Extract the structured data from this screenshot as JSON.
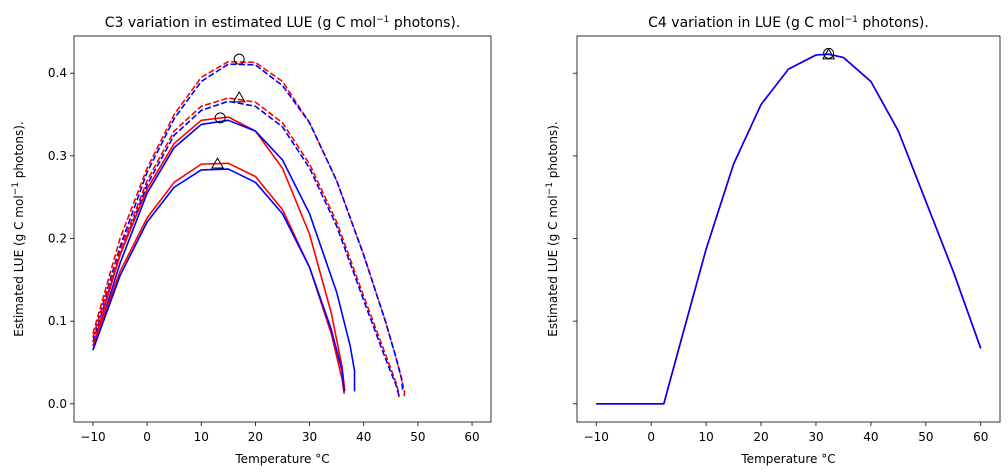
{
  "chart_data": [
    {
      "type": "line",
      "title": "C3 variation in estimated LUE (g C mol",
      "title_sup": "−1",
      "title_suffix": " photons).",
      "xlabel": "Temperature °C",
      "ylabel": "Estimated LUE (g C mol",
      "ylabel_sup": "−1",
      "ylabel_suffix": " photons).",
      "xlim": [
        -13.5,
        63.5
      ],
      "ylim": [
        -0.022,
        0.445
      ],
      "xticks": [
        -10,
        0,
        10,
        20,
        30,
        40,
        50,
        60
      ],
      "yticks": [
        0.0,
        0.1,
        0.2,
        0.3,
        0.4
      ],
      "ytick_labels": [
        "0.0",
        "0.1",
        "0.2",
        "0.3",
        "0.4"
      ],
      "grid": false,
      "colors": {
        "red": "#ff0000",
        "blue": "#0000ff"
      },
      "series": [
        {
          "color": "#ff0000",
          "dash": true,
          "x": [
            -10,
            -5,
            0,
            5,
            10,
            15,
            20,
            25,
            30,
            35,
            40,
            44,
            46,
            47,
            47.5,
            47.5
          ],
          "y": [
            0.085,
            0.2,
            0.285,
            0.35,
            0.395,
            0.414,
            0.413,
            0.39,
            0.34,
            0.27,
            0.18,
            0.1,
            0.055,
            0.03,
            0.015,
            0.008
          ]
        },
        {
          "color": "#0000ff",
          "dash": true,
          "x": [
            -10,
            -5,
            0,
            5,
            10,
            15,
            20,
            25,
            30,
            35,
            40,
            44,
            46,
            47,
            47.2,
            47.2
          ],
          "y": [
            0.08,
            0.19,
            0.28,
            0.345,
            0.39,
            0.411,
            0.41,
            0.385,
            0.34,
            0.27,
            0.18,
            0.1,
            0.055,
            0.03,
            0.015,
            0.015
          ]
        },
        {
          "color": "#ff0000",
          "dash": true,
          "x": [
            -10,
            -5,
            0,
            5,
            10,
            15,
            20,
            25,
            30,
            35,
            40,
            44,
            46,
            46.5,
            46.5
          ],
          "y": [
            0.08,
            0.185,
            0.27,
            0.33,
            0.36,
            0.37,
            0.365,
            0.34,
            0.29,
            0.22,
            0.13,
            0.06,
            0.025,
            0.012,
            0.008
          ]
        },
        {
          "color": "#0000ff",
          "dash": true,
          "x": [
            -10,
            -5,
            0,
            5,
            10,
            15,
            20,
            25,
            30,
            35,
            40,
            44,
            46,
            46.5,
            46.5
          ],
          "y": [
            0.075,
            0.18,
            0.265,
            0.325,
            0.355,
            0.366,
            0.36,
            0.335,
            0.285,
            0.215,
            0.125,
            0.055,
            0.022,
            0.01,
            0.01
          ]
        },
        {
          "color": "#ff0000",
          "dash": false,
          "x": [
            -10,
            -5,
            0,
            5,
            10,
            15,
            20,
            25,
            30,
            34,
            36,
            36.5
          ],
          "y": [
            0.07,
            0.18,
            0.26,
            0.315,
            0.343,
            0.347,
            0.33,
            0.285,
            0.205,
            0.11,
            0.045,
            0.015
          ]
        },
        {
          "color": "#0000ff",
          "dash": false,
          "x": [
            -10,
            -5,
            0,
            5,
            10,
            15,
            20,
            25,
            30,
            35,
            37.5,
            38.3,
            38.3
          ],
          "y": [
            0.065,
            0.17,
            0.255,
            0.31,
            0.338,
            0.343,
            0.33,
            0.295,
            0.23,
            0.135,
            0.07,
            0.04,
            0.015
          ]
        },
        {
          "color": "#ff0000",
          "dash": false,
          "x": [
            -10,
            -5,
            0,
            5,
            10,
            15,
            20,
            25,
            30,
            34,
            36,
            36.4
          ],
          "y": [
            0.07,
            0.16,
            0.225,
            0.268,
            0.29,
            0.291,
            0.275,
            0.235,
            0.165,
            0.085,
            0.03,
            0.012
          ]
        },
        {
          "color": "#0000ff",
          "dash": false,
          "x": [
            -10,
            -5,
            0,
            5,
            10,
            15,
            20,
            25,
            30,
            34,
            36,
            36.4
          ],
          "y": [
            0.065,
            0.155,
            0.22,
            0.262,
            0.283,
            0.284,
            0.268,
            0.23,
            0.165,
            0.09,
            0.04,
            0.015
          ]
        }
      ],
      "markers": [
        {
          "shape": "circle",
          "x": 17,
          "y": 0.417
        },
        {
          "shape": "triangle",
          "x": 17,
          "y": 0.37
        },
        {
          "shape": "circle",
          "x": 13.5,
          "y": 0.346
        },
        {
          "shape": "triangle",
          "x": 13,
          "y": 0.29
        }
      ]
    },
    {
      "type": "line",
      "title": "C4 variation in LUE (g C mol",
      "title_sup": "−1",
      "title_suffix": " photons).",
      "xlabel": "Temperature °C",
      "ylabel": "Estimated LUE (g C mol",
      "ylabel_sup": "−1",
      "ylabel_suffix": " photons).",
      "xlim": [
        -13.5,
        63.5
      ],
      "ylim": [
        -0.022,
        0.445
      ],
      "xticks": [
        -10,
        0,
        10,
        20,
        30,
        40,
        50,
        60
      ],
      "yticks": [
        0.0,
        0.1,
        0.2,
        0.3,
        0.4
      ],
      "ytick_labels": [
        "",
        "",
        "",
        "",
        ""
      ],
      "grid": false,
      "series": [
        {
          "color": "#ff0000",
          "dash": false,
          "x": [
            -10,
            2,
            2.3,
            5,
            10,
            15,
            20,
            25,
            30,
            32.3,
            35,
            40,
            45,
            50,
            55,
            60
          ],
          "y": [
            0.0,
            0.0,
            0.0,
            0.066,
            0.187,
            0.29,
            0.362,
            0.405,
            0.422,
            0.423,
            0.419,
            0.39,
            0.33,
            0.245,
            0.16,
            0.067
          ]
        },
        {
          "color": "#0000ff",
          "dash": false,
          "x": [
            -10,
            2,
            2.3,
            5,
            10,
            15,
            20,
            25,
            30,
            32.3,
            35,
            40,
            45,
            50,
            55,
            60
          ],
          "y": [
            0.0,
            0.0,
            0.0,
            0.066,
            0.187,
            0.29,
            0.362,
            0.405,
            0.422,
            0.423,
            0.419,
            0.39,
            0.33,
            0.245,
            0.16,
            0.067
          ]
        }
      ],
      "markers": [
        {
          "shape": "circle",
          "x": 32.3,
          "y": 0.424
        },
        {
          "shape": "triangle",
          "x": 32.3,
          "y": 0.422
        }
      ]
    }
  ]
}
